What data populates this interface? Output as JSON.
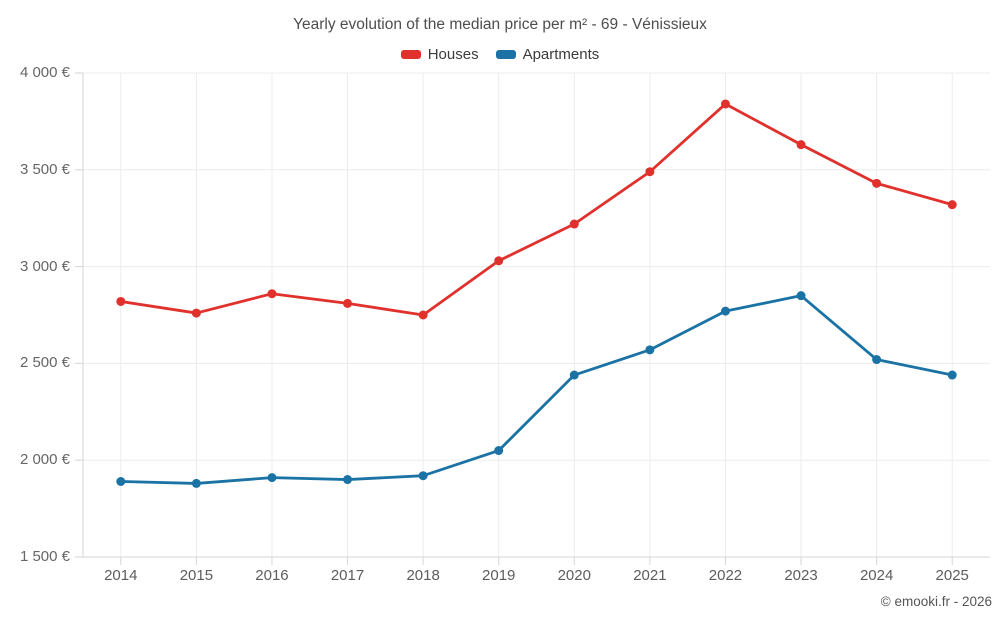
{
  "chart_data": {
    "type": "line",
    "title": "Yearly evolution of the median price per m² - 69 - Vénissieux",
    "categories": [
      "2014",
      "2015",
      "2016",
      "2017",
      "2018",
      "2019",
      "2020",
      "2021",
      "2022",
      "2023",
      "2024",
      "2025"
    ],
    "series": [
      {
        "name": "Houses",
        "color": "#e0312d",
        "values": [
          2820,
          2760,
          2860,
          2810,
          2750,
          3030,
          3220,
          3490,
          3840,
          3630,
          3430,
          3320
        ]
      },
      {
        "name": "Apartments",
        "color": "#1b73a5",
        "values": [
          1890,
          1880,
          1910,
          1900,
          1920,
          2050,
          2440,
          2570,
          2770,
          2850,
          2520,
          2440
        ]
      }
    ],
    "y_axis": {
      "min": 1500,
      "max": 4000,
      "step": 500,
      "tick_labels": [
        "1 500 €",
        "2 000 €",
        "2 500 €",
        "3 000 €",
        "3 500 €",
        "4 000 €"
      ]
    },
    "grid": true,
    "legend_position": "top"
  },
  "footer": {
    "credit": "© emooki.fr - 2026"
  },
  "palette": {
    "houses": "#e0312d",
    "apartments": "#1b73a5",
    "gridline": "#ececec",
    "axis_line": "#d6d6d6",
    "tick": "#d6d6d6"
  }
}
